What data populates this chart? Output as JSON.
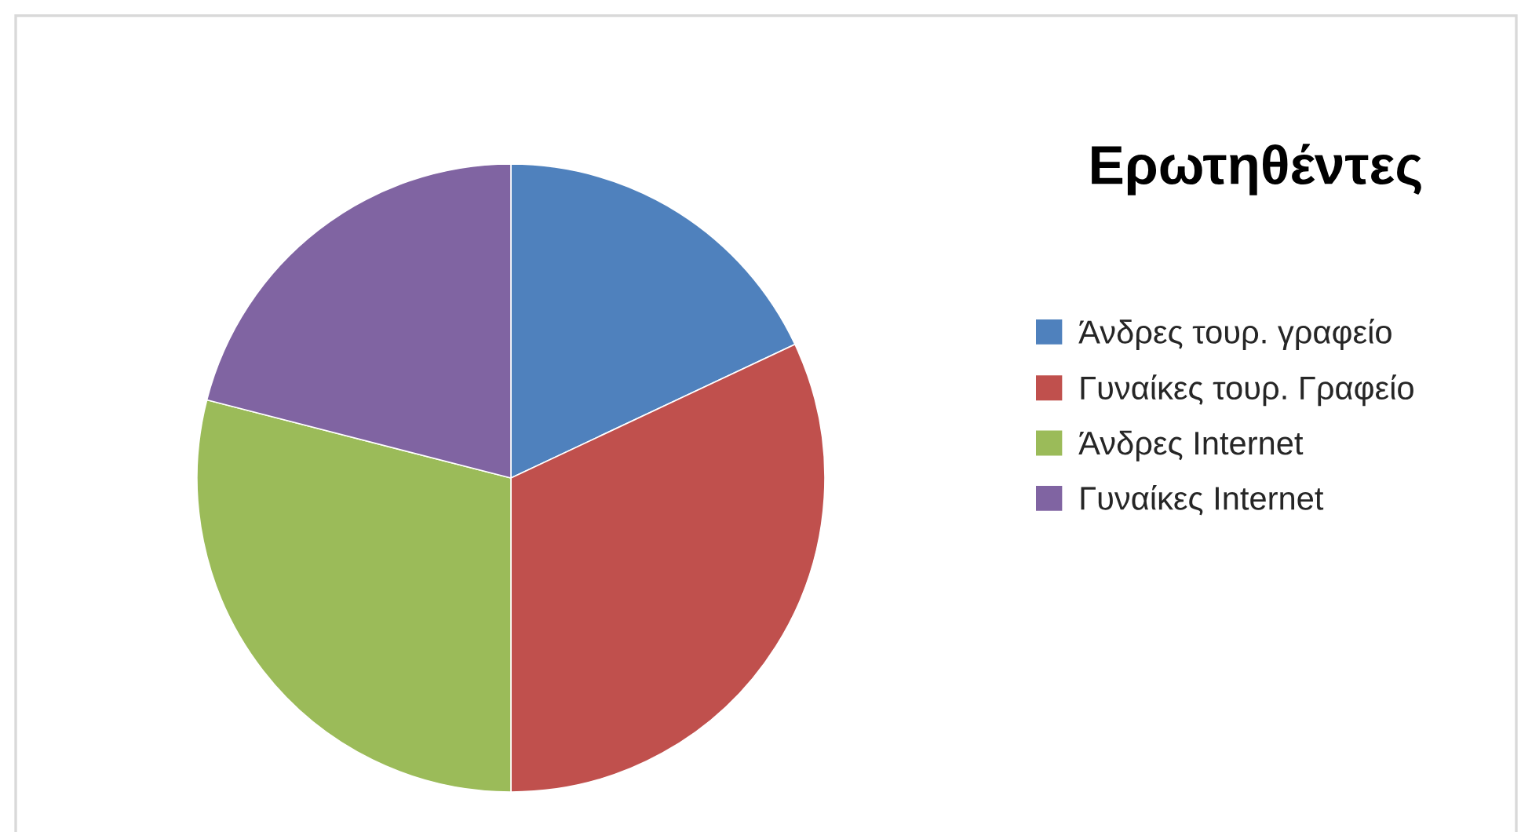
{
  "chart_data": {
    "type": "pie",
    "title": "Ερωτηθέντες",
    "categories": [
      "Άνδρες τουρ. γραφείο",
      "Γυναίκες τουρ. Γραφείο",
      "Άνδρες Internet",
      "Γυναίκες Internet"
    ],
    "values": [
      18,
      32,
      29,
      21
    ],
    "colors": [
      "#4f81bd",
      "#c0504d",
      "#9bbb59",
      "#8064a2"
    ],
    "legend": "right"
  }
}
